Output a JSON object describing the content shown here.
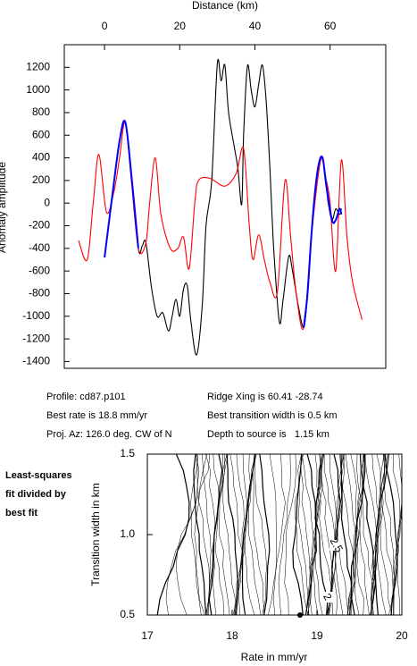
{
  "chart_data": [
    {
      "type": "line",
      "title": "Distance (km)",
      "ylabel": "Anomaly amplitude",
      "xlim": [
        -10.7,
        74.8
      ],
      "xticks": [
        0,
        20,
        40,
        60
      ],
      "ylim": [
        -1460,
        1400
      ],
      "yticks": [
        -1400,
        -1200,
        -1000,
        -800,
        -600,
        -400,
        -200,
        0,
        200,
        400,
        600,
        800,
        1000,
        1200
      ],
      "series": [
        {
          "color": "#000000",
          "x": [
            0,
            2,
            4,
            5.5,
            7,
            9,
            10,
            11,
            12.5,
            14,
            15.5,
            17,
            18,
            19,
            20,
            21,
            22,
            23,
            24.5,
            26,
            27,
            28.5,
            30,
            31,
            32,
            33,
            34.5,
            35.5,
            36.5,
            37,
            38,
            39,
            40,
            41,
            42,
            43,
            44,
            45,
            46.5,
            47.5,
            49,
            50,
            51.5,
            53,
            54,
            55,
            56,
            57,
            58,
            59,
            59.5,
            60.5,
            61.5,
            62.5,
            63
          ],
          "values": [
            -480,
            50,
            550,
            720,
            300,
            -400,
            -380,
            -350,
            -750,
            -1000,
            -970,
            -1130,
            -1000,
            -850,
            -1000,
            -760,
            -730,
            -1050,
            -1340,
            -900,
            -200,
            200,
            1230,
            1080,
            1220,
            800,
            500,
            300,
            -10,
            600,
            1210,
            1000,
            850,
            1050,
            1220,
            900,
            300,
            -400,
            -1050,
            -850,
            -470,
            -600,
            -900,
            -1100,
            -800,
            -300,
            100,
            350,
            400,
            150,
            0,
            -150,
            -50,
            -100,
            -50
          ]
        },
        {
          "color": "#ff0000",
          "x": [
            -6.9,
            -4.6,
            -3,
            -1.5,
            0.5,
            2.5,
            4,
            5.5,
            7,
            9,
            11,
            12,
            13.5,
            15,
            17.5,
            19.5,
            21,
            22.5,
            24,
            25,
            28,
            32,
            35,
            37,
            38.5,
            39.5,
            41,
            42.5,
            44,
            46,
            48,
            49.5,
            51,
            53,
            55,
            57.5,
            59,
            60,
            61.5,
            63,
            64.5,
            66,
            68.5
          ],
          "values": [
            -330,
            -500,
            0,
            430,
            -80,
            100,
            400,
            720,
            250,
            -400,
            -350,
            0,
            400,
            -100,
            -400,
            -400,
            -300,
            -580,
            0,
            200,
            220,
            150,
            260,
            480,
            -200,
            -500,
            -280,
            -500,
            -700,
            -780,
            200,
            -300,
            -800,
            -1100,
            -300,
            380,
            200,
            0,
            -600,
            380,
            -300,
            -700,
            -1030
          ]
        },
        {
          "color": "#0000ff",
          "x": [
            0,
            2,
            4,
            5.5,
            7,
            9,
            30,
            53,
            54,
            55,
            56,
            57,
            58,
            59,
            60.5,
            61.5,
            62.5,
            63
          ],
          "values": [
            -480,
            50,
            550,
            720,
            300,
            -400,
            null,
            -1100,
            -800,
            -300,
            100,
            350,
            400,
            150,
            -150,
            -150,
            -50,
            -100
          ]
        }
      ]
    },
    {
      "type": "contour",
      "xlabel": "Rate in mm/yr",
      "ylabel": "Transition width in km",
      "side_label": [
        "Least-squares",
        "fit divided by",
        "best fit"
      ],
      "xlim": [
        17,
        20
      ],
      "xticks": [
        17,
        18,
        19,
        20
      ],
      "ylim": [
        0.5,
        1.5
      ],
      "yticks": [
        0.5,
        {
          "value": 1.0,
          "label": "1.0"
        },
        1.5
      ],
      "contour_labels": [
        "2.5",
        "2"
      ],
      "best_point": {
        "x": 18.8,
        "y": 0.5
      }
    }
  ],
  "info": {
    "profile": "Profile: cd87.p101",
    "ridge": "Ridge Xing is 60.41 -28.74",
    "rate": "Best rate is 18.8 mm/yr",
    "width": "Best transition width is 0.5 km",
    "azimuth": "Proj. Az: 126.0 deg. CW of N",
    "depth": "Depth to source is   1.15 km"
  }
}
